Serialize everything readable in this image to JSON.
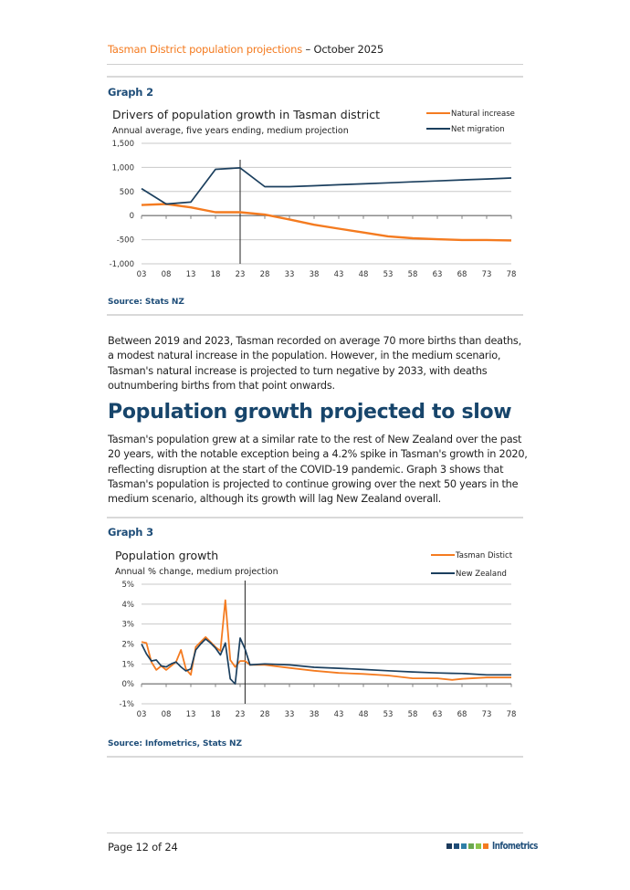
{
  "header": {
    "title_part1": "Tasman District population projections",
    "title_part2": " – October 2025"
  },
  "graph2": {
    "label": "Graph 2",
    "source": "Source: Stats NZ"
  },
  "paragraph1": "Between 2019 and 2023, Tasman recorded on average 70 more births than deaths, a modest natural increase in the population. However, in the medium scenario, Tasman's natural increase is projected to turn negative by 2033, with deaths outnumbering births from that point onwards.",
  "section_heading": "Population growth projected to slow",
  "paragraph2": "Tasman's population grew at a similar rate to the rest of New Zealand over the past 20 years, with the notable exception being a 4.2% spike in Tasman's growth in 2020, reflecting disruption at the start of the COVID-19 pandemic. Graph 3 shows that Tasman's population is projected to continue growing over the next 50 years in the medium scenario, although its growth will lag New Zealand overall.",
  "graph3": {
    "label": "Graph 3",
    "source": "Source: Infometrics, Stats NZ"
  },
  "footer": {
    "page": "Page 12 of 24",
    "logo_text": "Infometrics",
    "logo_colors": [
      "#1b3a5c",
      "#1f4e79",
      "#2e7fa8",
      "#6aa84f",
      "#8bc34a",
      "#f47b20"
    ]
  },
  "colors": {
    "orange": "#f47b20",
    "navy": "#1b3f5e",
    "heading": "#17456b"
  },
  "chart_data": [
    {
      "type": "line",
      "title": "Drivers of population growth in Tasman district",
      "subtitle": "Annual average, five years ending, medium projection",
      "xlabel": "",
      "ylabel": "",
      "x": [
        2003,
        2008,
        2013,
        2018,
        2023,
        2028,
        2033,
        2038,
        2043,
        2048,
        2053,
        2058,
        2063,
        2068,
        2073,
        2078
      ],
      "x_tick_labels": [
        "03",
        "08",
        "13",
        "18",
        "23",
        "28",
        "33",
        "38",
        "43",
        "48",
        "53",
        "58",
        "63",
        "68",
        "73",
        "78"
      ],
      "y_tick_labels": [
        "1,500",
        "1,000",
        "500",
        "0",
        "-500",
        "-1,000"
      ],
      "y_ticks": [
        1500,
        1000,
        500,
        0,
        -500,
        -1000
      ],
      "ylim": [
        -1000,
        1500
      ],
      "xlim": [
        2003,
        2078
      ],
      "projection_marker_x": 2023,
      "grid": true,
      "legend_position": "top-right",
      "series": [
        {
          "name": "Natural increase",
          "color": "#f47b20",
          "values": [
            220,
            240,
            170,
            70,
            70,
            20,
            -80,
            -190,
            -270,
            -350,
            -430,
            -470,
            -490,
            -505,
            -505,
            -515
          ]
        },
        {
          "name": "Net migration",
          "color": "#1b3f5e",
          "values": [
            560,
            240,
            280,
            960,
            990,
            600,
            600,
            620,
            640,
            660,
            680,
            700,
            720,
            740,
            760,
            780
          ]
        }
      ]
    },
    {
      "type": "line",
      "title": "Population growth",
      "subtitle": "Annual % change, medium projection",
      "xlabel": "",
      "ylabel": "",
      "x": [
        2003,
        2004,
        2005,
        2006,
        2007,
        2008,
        2009,
        2010,
        2011,
        2012,
        2013,
        2014,
        2015,
        2016,
        2017,
        2018,
        2019,
        2020,
        2021,
        2022,
        2023,
        2024,
        2025,
        2028,
        2033,
        2038,
        2043,
        2048,
        2053,
        2058,
        2063,
        2066,
        2068,
        2073,
        2078
      ],
      "x_tick_labels": [
        "03",
        "08",
        "13",
        "18",
        "23",
        "28",
        "33",
        "38",
        "43",
        "48",
        "53",
        "58",
        "63",
        "68",
        "73",
        "78"
      ],
      "y_tick_labels": [
        "5%",
        "4%",
        "3%",
        "2%",
        "1%",
        "0%",
        "-1%"
      ],
      "y_ticks": [
        5,
        4,
        3,
        2,
        1,
        0,
        -1
      ],
      "ylim": [
        -1,
        5
      ],
      "xlim": [
        2003,
        2078
      ],
      "projection_marker_x": 2024,
      "grid": true,
      "legend_position": "top-right",
      "series": [
        {
          "name": "Tasman Distict",
          "color": "#f47b20",
          "values": [
            2.1,
            2.05,
            1.1,
            0.7,
            0.9,
            0.7,
            0.9,
            1.1,
            1.7,
            0.75,
            0.45,
            1.85,
            2.1,
            2.35,
            2.1,
            1.85,
            1.65,
            4.2,
            1.2,
            0.85,
            1.15,
            1.15,
            0.95,
            0.95,
            0.8,
            0.66,
            0.55,
            0.5,
            0.42,
            0.28,
            0.28,
            0.2,
            0.25,
            0.32,
            0.32
          ]
        },
        {
          "name": "New Zealand",
          "color": "#1b3f5e",
          "values": [
            2.0,
            1.5,
            1.15,
            1.2,
            0.9,
            0.85,
            1.0,
            1.1,
            0.85,
            0.65,
            0.75,
            1.7,
            2.0,
            2.25,
            2.05,
            1.8,
            1.45,
            2.05,
            0.25,
            0.0,
            2.3,
            1.75,
            0.95,
            1.0,
            0.95,
            0.83,
            0.78,
            0.72,
            0.66,
            0.6,
            0.55,
            0.53,
            0.52,
            0.45,
            0.45
          ]
        }
      ]
    }
  ]
}
